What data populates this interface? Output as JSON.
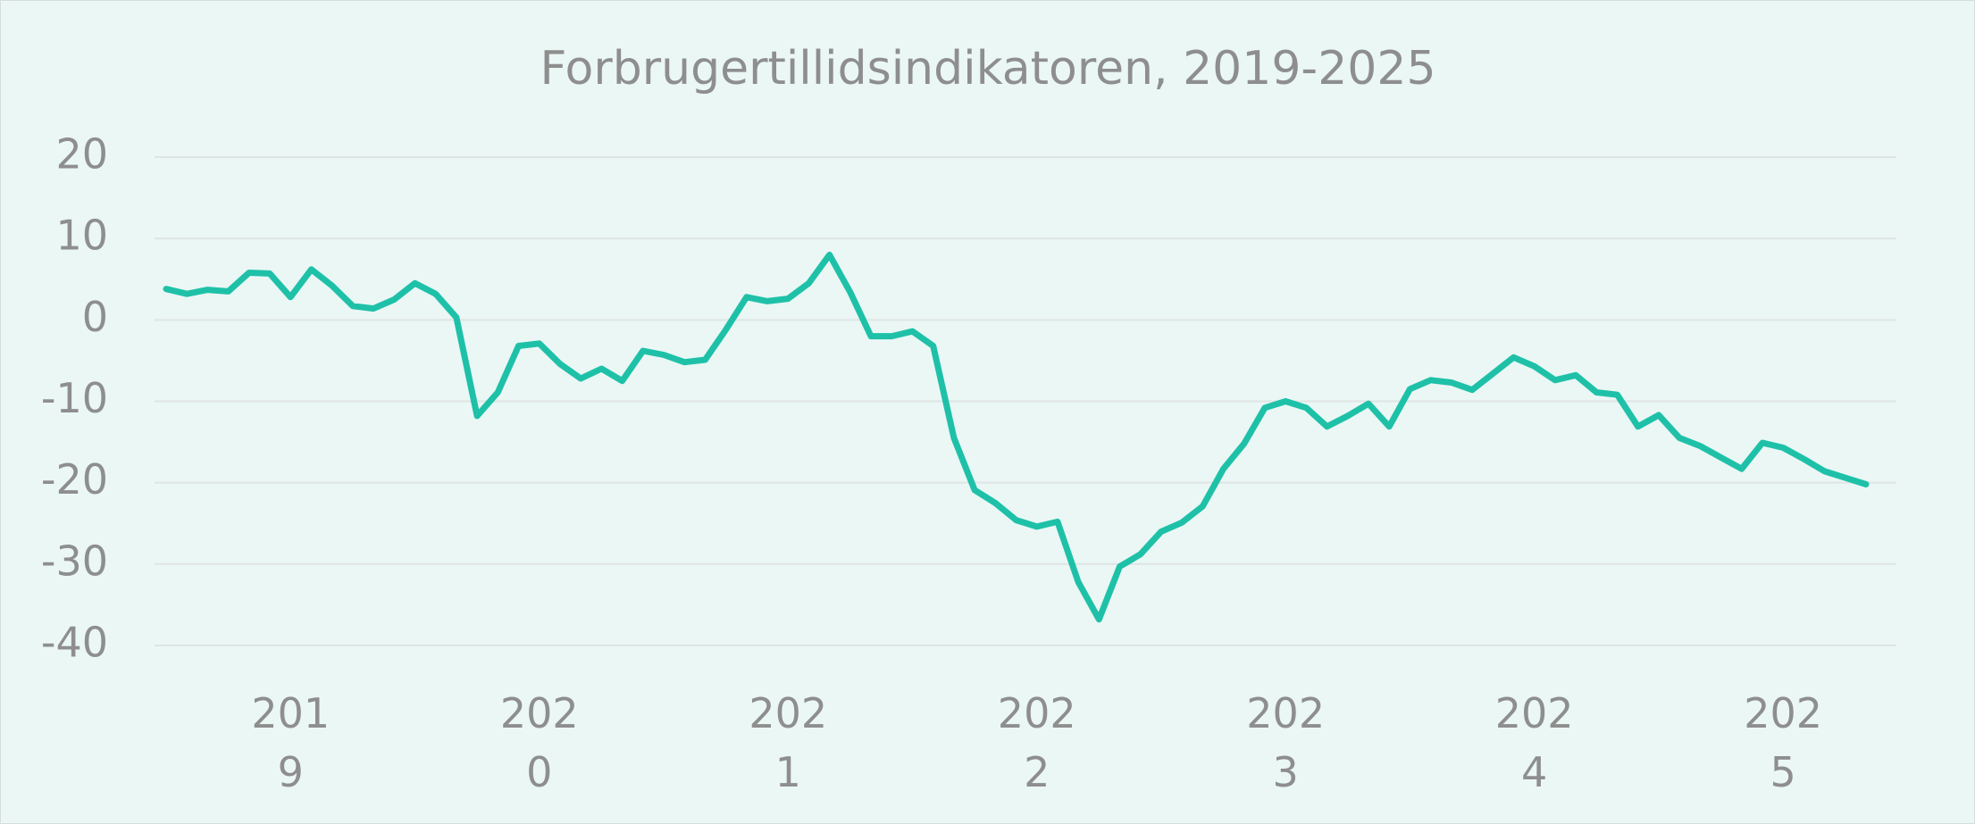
{
  "chart_data": {
    "type": "line",
    "title": "Forbrugertillidsindikatoren, 2019-2025",
    "categories": [
      null,
      null,
      null,
      null,
      null,
      null,
      "2019",
      null,
      null,
      null,
      null,
      null,
      null,
      null,
      null,
      null,
      null,
      null,
      "2020",
      null,
      null,
      null,
      null,
      null,
      null,
      null,
      null,
      null,
      null,
      null,
      "2021",
      null,
      null,
      null,
      null,
      null,
      null,
      null,
      null,
      null,
      null,
      null,
      "2022",
      null,
      null,
      null,
      null,
      null,
      null,
      null,
      null,
      null,
      null,
      null,
      "2023",
      null,
      null,
      null,
      null,
      null,
      null,
      null,
      null,
      null,
      null,
      null,
      "2024",
      null,
      null,
      null,
      null,
      null,
      null,
      null,
      null,
      null,
      null,
      null,
      "2025",
      null,
      null,
      null,
      null
    ],
    "values": [
      3.8,
      3.2,
      3.7,
      3.5,
      5.8,
      5.7,
      2.8,
      6.2,
      4.2,
      1.7,
      1.4,
      2.5,
      4.5,
      3.2,
      0.3,
      -11.8,
      -8.9,
      -3.2,
      -2.9,
      -5.4,
      -7.2,
      -6.0,
      -7.5,
      -3.8,
      -4.3,
      -5.2,
      -4.9,
      -1.2,
      2.8,
      2.3,
      2.6,
      4.5,
      8.0,
      3.4,
      -2.0,
      -2.0,
      -1.4,
      -3.2,
      -14.5,
      -20.9,
      -22.5,
      -24.6,
      -25.4,
      -24.8,
      -32.2,
      -36.8,
      -30.3,
      -28.8,
      -26.0,
      -24.9,
      -22.9,
      -18.3,
      -15.2,
      -10.8,
      -10.0,
      -10.8,
      -13.1,
      -11.8,
      -10.3,
      -13.1,
      -8.5,
      -7.4,
      -7.7,
      -8.6,
      -6.6,
      -4.6,
      -5.7,
      -7.4,
      -6.8,
      -8.9,
      -9.2,
      -13.1,
      -11.7,
      -14.5,
      -15.5,
      -16.9,
      -18.3,
      -15.1,
      -15.7,
      -17.1,
      -18.6,
      -19.4,
      -20.2
    ],
    "color": "#1ec1a8",
    "ylim": [
      -40,
      20
    ],
    "yticks": [
      -40,
      -30,
      -20,
      -10,
      0,
      10,
      20
    ],
    "grid": true
  }
}
